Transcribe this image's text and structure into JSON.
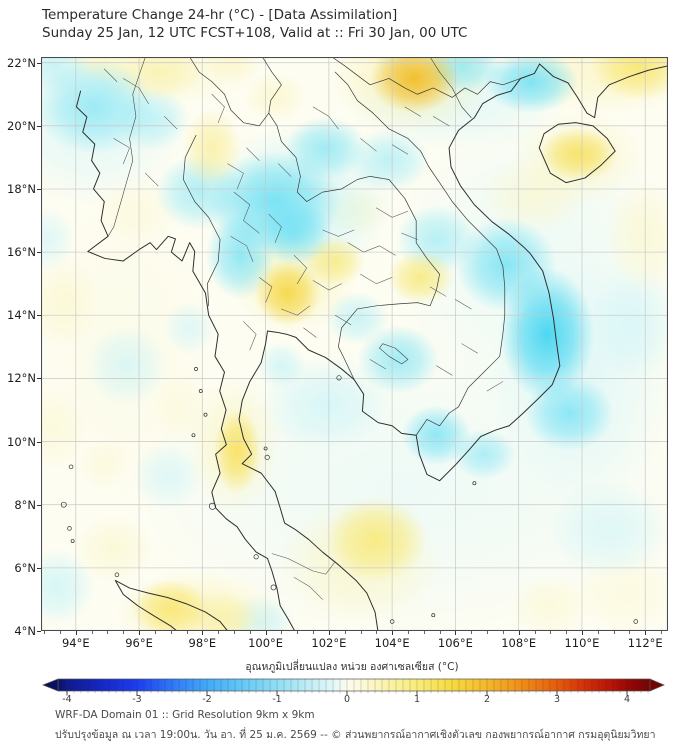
{
  "header": {
    "title_line1": "Temperature Change 24-hr (°C) - [Data Assimilation]",
    "title_line2": "Sunday 25 Jan, 12 UTC FCST+108, Valid at :: Fri 30 Jan, 00 UTC"
  },
  "footer": {
    "line1": "WRF-DA Domain 01 :: Grid Resolution 9km x 9km",
    "line2": "ปรับปรุงข้อมูล ณ เวลา 19:00น. วัน อา. ที่ 25 ม.ค. 2569 -- © ส่วนพยากรณ์อากาศเชิงตัวเลข กองพยากรณ์อากาศ กรมอุตุนิยมวิทยา"
  },
  "chart_data": {
    "type": "heatmap",
    "title": "Temperature Change 24-hr (°C) - [Data Assimilation]",
    "subtitle": "Sunday 25 Jan, 12 UTC FCST+108, Valid at :: Fri 30 Jan, 00 UTC",
    "units": "°C",
    "grid": true,
    "map_extent": {
      "lon_min": 92.9,
      "lon_max": 112.72,
      "lat_min": 4.0,
      "lat_max": 22.18
    },
    "x_tick_values": [
      94,
      96,
      98,
      100,
      102,
      104,
      106,
      108,
      110,
      112
    ],
    "x_tick_labels": [
      "94°E",
      "96°E",
      "98°E",
      "100°E",
      "102°E",
      "104°E",
      "106°E",
      "108°E",
      "110°E",
      "112°E"
    ],
    "y_tick_values": [
      22,
      20,
      18,
      16,
      14,
      12,
      10,
      8,
      6,
      4
    ],
    "y_tick_labels": [
      "22°N",
      "20°N",
      "18°N",
      "16°N",
      "14°N",
      "12°N",
      "10°N",
      "8°N",
      "6°N",
      "4°N"
    ],
    "background_color": "#fdfdf2",
    "gridline_color": "#c7c7c7",
    "colorbar": {
      "title": "อุณหภูมิเปลี่ยนแปลง หน่วย องศาเซลเซียส (°C)",
      "range": [
        -4,
        4
      ],
      "tick_values": [
        -4,
        -3,
        -2,
        -1,
        0,
        1,
        2,
        3,
        4
      ],
      "tick_labels": [
        "-4",
        "-3",
        "-2",
        "-1",
        "0",
        "1",
        "2",
        "3",
        "4"
      ],
      "stops": [
        {
          "v": -4.35,
          "c": "#0a1060"
        },
        {
          "v": -4.0,
          "c": "#101a8c"
        },
        {
          "v": -3.5,
          "c": "#1527c8"
        },
        {
          "v": -3.0,
          "c": "#1d3df0"
        },
        {
          "v": -2.5,
          "c": "#2f77f8"
        },
        {
          "v": -2.0,
          "c": "#41aaf8"
        },
        {
          "v": -1.5,
          "c": "#64c8f6"
        },
        {
          "v": -1.0,
          "c": "#90def4"
        },
        {
          "v": -0.5,
          "c": "#c4eff6"
        },
        {
          "v": -0.15,
          "c": "#e8f8f6"
        },
        {
          "v": 0.0,
          "c": "#fbfcee"
        },
        {
          "v": 0.15,
          "c": "#fcfadf"
        },
        {
          "v": 0.5,
          "c": "#fbf4b4"
        },
        {
          "v": 1.0,
          "c": "#f9ec79"
        },
        {
          "v": 1.5,
          "c": "#f7da40"
        },
        {
          "v": 2.0,
          "c": "#f4b82a"
        },
        {
          "v": 2.5,
          "c": "#ef8d18"
        },
        {
          "v": 3.0,
          "c": "#e65c0e"
        },
        {
          "v": 3.4,
          "c": "#d42f08"
        },
        {
          "v": 3.8,
          "c": "#b41206"
        },
        {
          "v": 4.1,
          "c": "#8f0505"
        },
        {
          "v": 4.35,
          "c": "#760303"
        }
      ]
    },
    "field_palette": [
      {
        "v": -1.6,
        "c": "#24cdf0"
      },
      {
        "v": -1.2,
        "c": "#4cd8f2"
      },
      {
        "v": -0.9,
        "c": "#7de4f5"
      },
      {
        "v": -0.6,
        "c": "#abeef7"
      },
      {
        "v": -0.35,
        "c": "#cdf4f9"
      },
      {
        "v": -0.15,
        "c": "#e6f9fb"
      },
      {
        "v": 0.0,
        "c": "#fdfdf2"
      },
      {
        "v": 0.2,
        "c": "#fcfae0"
      },
      {
        "v": 0.45,
        "c": "#fbf5c2"
      },
      {
        "v": 0.7,
        "c": "#f9efa0"
      },
      {
        "v": 0.95,
        "c": "#f8e76e"
      },
      {
        "v": 1.2,
        "c": "#f6da42"
      },
      {
        "v": 1.5,
        "c": "#f2bd27"
      },
      {
        "v": 1.8,
        "c": "#eea51d"
      }
    ],
    "anomaly_blobs": [
      [
        104.5,
        8.5,
        8.5,
        4.5,
        -0.18
      ],
      [
        108.5,
        15.5,
        4.5,
        5.0,
        -0.2
      ],
      [
        95.5,
        13.0,
        3.0,
        5.5,
        0.18
      ],
      [
        94.5,
        20.0,
        3.0,
        2.5,
        -0.3
      ],
      [
        101.0,
        17.5,
        3.0,
        2.5,
        -0.45
      ],
      [
        110.0,
        12.0,
        3.0,
        4.0,
        -0.3
      ],
      [
        106.0,
        20.8,
        3.5,
        1.6,
        -0.3
      ],
      [
        97.0,
        21.8,
        3.0,
        1.2,
        0.35
      ],
      [
        110.8,
        21.8,
        3.0,
        1.5,
        0.5
      ],
      [
        104.6,
        21.6,
        2.6,
        1.9,
        0.6
      ],
      [
        100.9,
        15.1,
        2.0,
        1.7,
        0.55
      ],
      [
        99.0,
        9.9,
        1.5,
        2.2,
        0.5
      ],
      [
        103.0,
        6.2,
        2.6,
        2.0,
        0.5
      ],
      [
        97.8,
        4.6,
        2.6,
        1.3,
        0.55
      ],
      [
        109.9,
        19.0,
        2.1,
        1.5,
        0.45
      ],
      [
        112.0,
        16.5,
        1.3,
        1.8,
        0.4
      ],
      [
        93.6,
        14.4,
        1.2,
        1.4,
        0.4
      ],
      [
        93.3,
        10.4,
        1.0,
        1.3,
        0.35
      ],
      [
        95.2,
        6.6,
        1.3,
        1.1,
        0.4
      ],
      [
        108.5,
        17.8,
        1.7,
        1.2,
        0.4
      ],
      [
        97.3,
        11.1,
        0.9,
        1.1,
        0.3
      ],
      [
        94.9,
        9.3,
        0.8,
        0.8,
        0.3
      ],
      [
        111.4,
        5.2,
        1.7,
        1.3,
        0.3
      ],
      [
        109.0,
        4.8,
        1.3,
        1.0,
        0.35
      ],
      [
        102.9,
        17.3,
        1.0,
        0.8,
        0.4
      ],
      [
        100.3,
        20.9,
        1.0,
        0.8,
        0.45
      ],
      [
        95.9,
        17.3,
        1.3,
        1.1,
        0.3
      ],
      [
        94.6,
        20.6,
        1.9,
        1.5,
        -0.85
      ],
      [
        96.4,
        20.2,
        1.2,
        1.0,
        -0.6
      ],
      [
        93.3,
        21.9,
        1.2,
        0.9,
        -0.55
      ],
      [
        97.9,
        17.9,
        1.4,
        1.2,
        -0.75
      ],
      [
        100.3,
        17.6,
        2.1,
        1.6,
        -1.05
      ],
      [
        99.2,
        15.9,
        1.1,
        1.4,
        -0.95
      ],
      [
        101.9,
        19.3,
        1.3,
        1.0,
        -0.85
      ],
      [
        103.9,
        18.9,
        1.3,
        1.0,
        -0.65
      ],
      [
        100.9,
        16.6,
        1.2,
        1.0,
        -0.95
      ],
      [
        106.2,
        21.9,
        1.3,
        0.9,
        -0.85
      ],
      [
        108.4,
        21.4,
        1.5,
        1.0,
        -1.05
      ],
      [
        104.3,
        22.2,
        0.9,
        0.7,
        -0.5
      ],
      [
        107.6,
        15.6,
        1.6,
        1.5,
        -1.0
      ],
      [
        108.9,
        13.4,
        1.5,
        2.1,
        -1.35
      ],
      [
        109.6,
        10.9,
        1.4,
        1.2,
        -0.95
      ],
      [
        105.4,
        16.4,
        1.3,
        1.1,
        -0.7
      ],
      [
        104.2,
        12.6,
        1.3,
        1.1,
        -0.85
      ],
      [
        105.4,
        10.2,
        1.1,
        0.95,
        -0.95
      ],
      [
        106.9,
        9.6,
        1.0,
        0.8,
        -0.75
      ],
      [
        101.9,
        11.2,
        2.0,
        1.5,
        -0.4
      ],
      [
        102.9,
        13.9,
        1.0,
        0.85,
        -0.55
      ],
      [
        95.6,
        12.4,
        1.3,
        1.3,
        -0.4
      ],
      [
        96.9,
        8.9,
        1.1,
        1.1,
        -0.35
      ],
      [
        93.4,
        5.4,
        1.2,
        1.2,
        -0.45
      ],
      [
        99.8,
        4.3,
        1.1,
        0.85,
        -0.5
      ],
      [
        93.1,
        16.4,
        0.85,
        1.0,
        -0.35
      ],
      [
        100.5,
        12.4,
        0.8,
        0.75,
        -0.45
      ],
      [
        97.6,
        13.6,
        0.85,
        0.85,
        -0.35
      ],
      [
        111.7,
        13.8,
        1.5,
        1.8,
        -0.35
      ],
      [
        110.9,
        7.2,
        2.0,
        1.6,
        -0.35
      ],
      [
        104.7,
        21.5,
        1.4,
        1.1,
        1.5
      ],
      [
        111.8,
        21.9,
        1.5,
        1.1,
        1.0
      ],
      [
        109.9,
        19.1,
        1.25,
        0.85,
        1.1
      ],
      [
        96.6,
        21.7,
        1.5,
        0.9,
        0.65
      ],
      [
        94.8,
        22.05,
        1.1,
        0.7,
        0.5
      ],
      [
        98.9,
        22.0,
        0.95,
        0.65,
        0.45
      ],
      [
        98.3,
        19.3,
        0.95,
        1.25,
        0.75
      ],
      [
        100.7,
        14.7,
        1.05,
        1.05,
        1.25
      ],
      [
        102.2,
        15.7,
        0.95,
        0.8,
        0.9
      ],
      [
        104.9,
        15.2,
        1.05,
        0.85,
        0.95
      ],
      [
        99.1,
        9.7,
        0.75,
        1.35,
        1.1
      ],
      [
        97.0,
        4.7,
        1.25,
        0.95,
        1.0
      ],
      [
        98.6,
        4.4,
        1.15,
        0.85,
        0.7
      ],
      [
        103.5,
        6.9,
        1.6,
        1.35,
        0.95
      ]
    ]
  }
}
